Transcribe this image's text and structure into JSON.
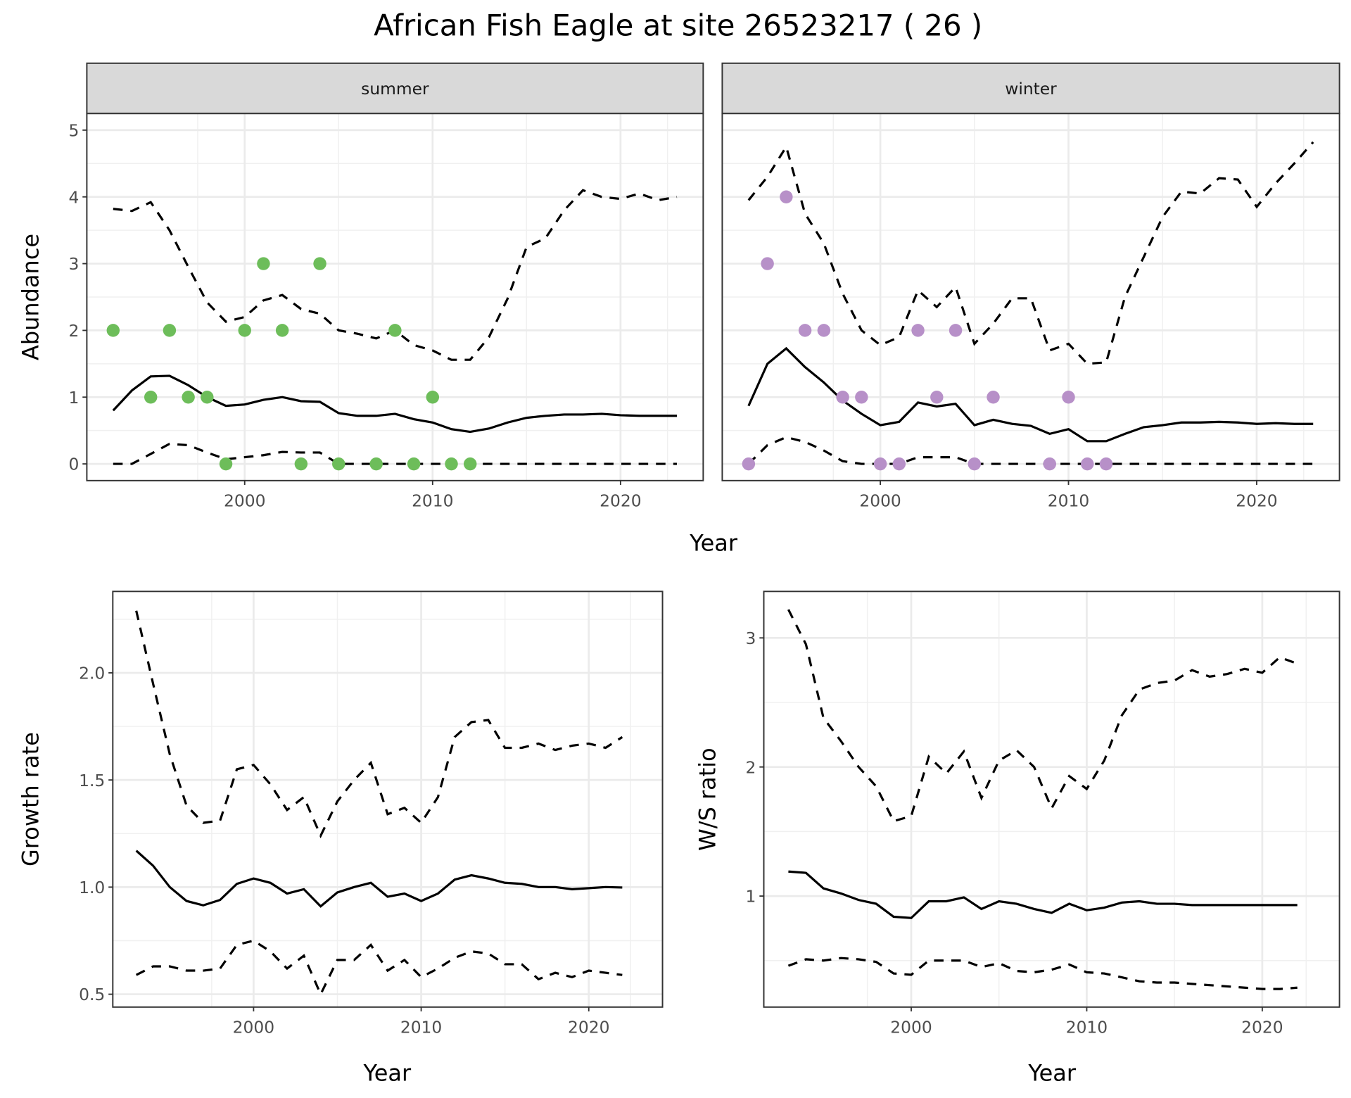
{
  "title": "African Fish Eagle at site 26523217 ( 26 )",
  "colors": {
    "summer": "#6dbd5a",
    "winter": "#b790c8"
  },
  "chart_data": [
    {
      "type": "line",
      "panel": "summer",
      "strip_label": "summer",
      "ylabel": "Abundance",
      "xlabel": "Year",
      "xlim": [
        1991.6,
        2024.4
      ],
      "ylim": [
        -0.25,
        5.25
      ],
      "xticks": [
        2000,
        2010,
        2020
      ],
      "yticks": [
        0,
        1,
        2,
        3,
        4,
        5
      ],
      "grid": true,
      "x": [
        1993,
        1994,
        1995,
        1996,
        1997,
        1998,
        1999,
        2000,
        2001,
        2002,
        2003,
        2004,
        2005,
        2006,
        2007,
        2008,
        2009,
        2010,
        2011,
        2012,
        2013,
        2014,
        2015,
        2016,
        2017,
        2018,
        2019,
        2020,
        2021,
        2022,
        2023
      ],
      "mean": [
        0.8,
        1.1,
        1.31,
        1.32,
        1.18,
        1.0,
        0.87,
        0.89,
        0.96,
        1.0,
        0.94,
        0.93,
        0.76,
        0.72,
        0.72,
        0.75,
        0.67,
        0.62,
        0.52,
        0.48,
        0.53,
        0.62,
        0.69,
        0.72,
        0.74,
        0.74,
        0.75,
        0.73,
        0.72,
        0.72,
        0.72
      ],
      "upper": [
        3.82,
        3.79,
        3.92,
        3.5,
        2.95,
        2.42,
        2.13,
        2.2,
        2.45,
        2.53,
        2.32,
        2.25,
        2.0,
        1.95,
        1.88,
        2.0,
        1.78,
        1.7,
        1.56,
        1.56,
        1.9,
        2.48,
        3.25,
        3.38,
        3.8,
        4.1,
        4.0,
        3.97,
        4.05,
        3.95,
        4.0
      ],
      "lower": [
        0,
        0,
        0.15,
        0.3,
        0.28,
        0.17,
        0.07,
        0.1,
        0.13,
        0.18,
        0.17,
        0.17,
        0,
        0,
        0,
        0,
        0,
        0,
        0,
        0,
        0,
        0,
        0,
        0,
        0,
        0,
        0,
        0,
        0,
        0,
        0
      ],
      "points": {
        "x": [
          1993,
          1995,
          1996,
          1997,
          1998,
          1999,
          2000,
          2001,
          2002,
          2003,
          2004,
          2005,
          2007,
          2008,
          2009,
          2010,
          2011,
          2012
        ],
        "y": [
          2,
          1,
          2,
          1,
          1,
          0,
          2,
          3,
          2,
          0,
          3,
          0,
          0,
          2,
          0,
          1,
          0,
          0
        ]
      }
    },
    {
      "type": "line",
      "panel": "winter",
      "strip_label": "winter",
      "xlabel": "Year",
      "xlim": [
        1991.6,
        2024.4
      ],
      "ylim": [
        -0.25,
        5.25
      ],
      "xticks": [
        2000,
        2010,
        2020
      ],
      "yticks": [
        0,
        1,
        2,
        3,
        4,
        5
      ],
      "grid": true,
      "x": [
        1993,
        1994,
        1995,
        1996,
        1997,
        1998,
        1999,
        2000,
        2001,
        2002,
        2003,
        2004,
        2005,
        2006,
        2007,
        2008,
        2009,
        2010,
        2011,
        2012,
        2013,
        2014,
        2015,
        2016,
        2017,
        2018,
        2019,
        2020,
        2021,
        2022,
        2023
      ],
      "mean": [
        0.87,
        1.5,
        1.73,
        1.45,
        1.22,
        0.95,
        0.75,
        0.58,
        0.63,
        0.92,
        0.86,
        0.9,
        0.58,
        0.66,
        0.6,
        0.57,
        0.45,
        0.52,
        0.34,
        0.34,
        0.45,
        0.55,
        0.58,
        0.62,
        0.62,
        0.63,
        0.62,
        0.6,
        0.61,
        0.6,
        0.6
      ],
      "upper": [
        3.95,
        4.3,
        4.75,
        3.75,
        3.3,
        2.55,
        2.0,
        1.78,
        1.9,
        2.6,
        2.35,
        2.65,
        1.8,
        2.1,
        2.48,
        2.48,
        1.7,
        1.8,
        1.5,
        1.52,
        2.5,
        3.1,
        3.7,
        4.08,
        4.05,
        4.28,
        4.26,
        3.85,
        4.2,
        4.5,
        4.82
      ],
      "lower": [
        0,
        0.28,
        0.4,
        0.33,
        0.2,
        0.04,
        0,
        0,
        0,
        0.1,
        0.1,
        0.1,
        0,
        0,
        0,
        0,
        0,
        0,
        0,
        0,
        0,
        0,
        0,
        0,
        0,
        0,
        0,
        0,
        0,
        0,
        0
      ],
      "points": {
        "x": [
          1993,
          1994,
          1995,
          1996,
          1997,
          1998,
          1999,
          2000,
          2001,
          2002,
          2003,
          2004,
          2005,
          2006,
          2009,
          2010,
          2011,
          2012
        ],
        "y": [
          0,
          3,
          4,
          2,
          2,
          1,
          1,
          0,
          0,
          2,
          1,
          2,
          0,
          1,
          0,
          1,
          0,
          0
        ]
      }
    },
    {
      "type": "line",
      "panel": "growth",
      "ylabel": "Growth rate",
      "xlabel": "Year",
      "xlim": [
        1991.6,
        2024.4
      ],
      "ylim": [
        0.44,
        2.38
      ],
      "xticks": [
        2000,
        2010,
        2020
      ],
      "yticks": [
        0.5,
        1.0,
        1.5,
        2.0
      ],
      "ytick_labels": [
        "0.5",
        "1.0",
        "1.5",
        "2.0"
      ],
      "grid": true,
      "x": [
        1993,
        1994,
        1995,
        1996,
        1997,
        1998,
        1999,
        2000,
        2001,
        2002,
        2003,
        2004,
        2005,
        2006,
        2007,
        2008,
        2009,
        2010,
        2011,
        2012,
        2013,
        2014,
        2015,
        2016,
        2017,
        2018,
        2019,
        2020,
        2021,
        2022
      ],
      "mean": [
        1.17,
        1.1,
        1.0,
        0.935,
        0.915,
        0.94,
        1.015,
        1.04,
        1.02,
        0.97,
        0.99,
        0.91,
        0.975,
        1.0,
        1.02,
        0.955,
        0.97,
        0.935,
        0.97,
        1.035,
        1.055,
        1.04,
        1.02,
        1.015,
        1.0,
        1.0,
        0.99,
        0.995,
        1.0,
        0.998
      ],
      "upper": [
        2.29,
        1.95,
        1.62,
        1.38,
        1.3,
        1.31,
        1.55,
        1.57,
        1.48,
        1.36,
        1.42,
        1.24,
        1.4,
        1.5,
        1.58,
        1.34,
        1.37,
        1.3,
        1.42,
        1.7,
        1.77,
        1.78,
        1.65,
        1.65,
        1.67,
        1.64,
        1.66,
        1.67,
        1.65,
        1.7
      ],
      "lower": [
        0.59,
        0.63,
        0.63,
        0.61,
        0.61,
        0.62,
        0.73,
        0.75,
        0.7,
        0.62,
        0.68,
        0.5,
        0.66,
        0.66,
        0.73,
        0.61,
        0.66,
        0.58,
        0.62,
        0.67,
        0.7,
        0.69,
        0.64,
        0.64,
        0.57,
        0.6,
        0.58,
        0.61,
        0.6,
        0.59
      ]
    },
    {
      "type": "line",
      "panel": "ratio",
      "ylabel": "W/S ratio",
      "xlabel": "Year",
      "xlim": [
        1991.6,
        2024.4
      ],
      "ylim": [
        0.14,
        3.36
      ],
      "xticks": [
        2000,
        2010,
        2020
      ],
      "yticks": [
        1,
        2,
        3
      ],
      "ytick_labels": [
        "1",
        "2",
        "3"
      ],
      "grid": true,
      "x": [
        1993,
        1994,
        1995,
        1996,
        1997,
        1998,
        1999,
        2000,
        2001,
        2002,
        2003,
        2004,
        2005,
        2006,
        2007,
        2008,
        2009,
        2010,
        2011,
        2012,
        2013,
        2014,
        2015,
        2016,
        2017,
        2018,
        2019,
        2020,
        2021,
        2022
      ],
      "mean": [
        1.19,
        1.18,
        1.06,
        1.02,
        0.97,
        0.94,
        0.84,
        0.83,
        0.96,
        0.96,
        0.99,
        0.9,
        0.96,
        0.94,
        0.9,
        0.87,
        0.94,
        0.89,
        0.91,
        0.95,
        0.96,
        0.94,
        0.94,
        0.93,
        0.93,
        0.93,
        0.93,
        0.93,
        0.93,
        0.93
      ],
      "upper": [
        3.22,
        2.95,
        2.38,
        2.2,
        2.0,
        1.85,
        1.58,
        1.62,
        2.08,
        1.95,
        2.12,
        1.76,
        2.05,
        2.13,
        2.0,
        1.68,
        1.93,
        1.83,
        2.05,
        2.4,
        2.6,
        2.65,
        2.67,
        2.75,
        2.7,
        2.72,
        2.76,
        2.73,
        2.85,
        2.8
      ],
      "lower": [
        0.46,
        0.51,
        0.5,
        0.52,
        0.51,
        0.49,
        0.4,
        0.39,
        0.5,
        0.5,
        0.5,
        0.45,
        0.48,
        0.42,
        0.41,
        0.43,
        0.47,
        0.41,
        0.4,
        0.37,
        0.34,
        0.33,
        0.33,
        0.32,
        0.31,
        0.3,
        0.29,
        0.28,
        0.28,
        0.29
      ]
    }
  ],
  "shared_xlabel_top": "Year"
}
